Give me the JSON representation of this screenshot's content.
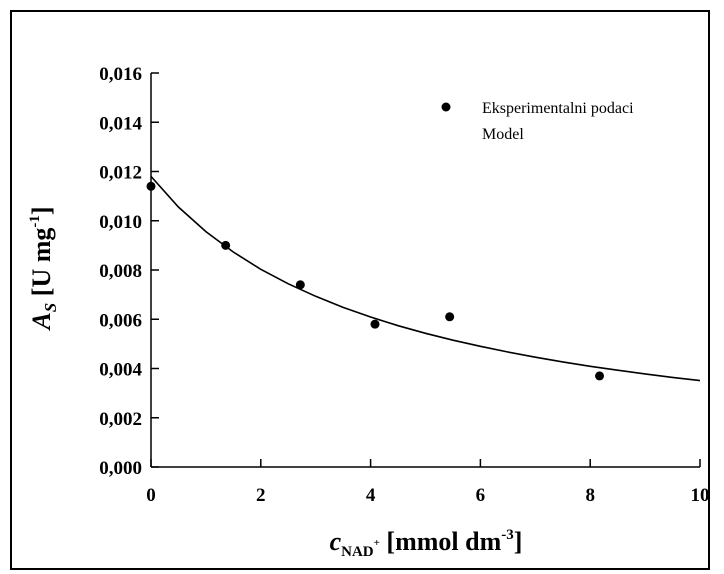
{
  "chart_data": {
    "type": "scatter",
    "xlim": [
      0,
      10
    ],
    "ylim": [
      0,
      0.016
    ],
    "x_ticks": [
      0,
      2,
      4,
      6,
      8,
      10
    ],
    "x_tick_labels": [
      "0",
      "2",
      "4",
      "6",
      "8",
      "10"
    ],
    "y_ticks": [
      0,
      0.002,
      0.004,
      0.006,
      0.008,
      0.01,
      0.012,
      0.014,
      0.016
    ],
    "y_tick_labels": [
      "0,000",
      "0,002",
      "0,004",
      "0,006",
      "0,008",
      "0,010",
      "0,012",
      "0,014",
      "0,016"
    ],
    "xlabel": {
      "main": "c",
      "sub": "NAD",
      "sub_sup": "+",
      "rest": " [mmol dm",
      "sup": "-3",
      "close": "]"
    },
    "ylabel": {
      "main": "A",
      "sub": "S",
      "rest": " [U mg",
      "sup": "-1",
      "close": "]"
    },
    "legend_position": "top-right",
    "grid": false,
    "series": [
      {
        "name": "Eksperimentalni podaci",
        "kind": "scatter",
        "color": "#000000",
        "x": [
          0,
          1.36,
          2.72,
          4.08,
          5.44,
          8.17
        ],
        "y": [
          0.0114,
          0.009,
          0.0074,
          0.0058,
          0.0061,
          0.0037
        ]
      },
      {
        "name": "Model",
        "kind": "line",
        "color": "#000000",
        "x": [
          0,
          0.5,
          1,
          1.5,
          2,
          2.5,
          3,
          3.5,
          4,
          4.5,
          5,
          5.5,
          6,
          6.5,
          7,
          7.5,
          8,
          8.5,
          9,
          9.5,
          10
        ],
        "y": [
          0.0118,
          0.01056,
          0.00956,
          0.00873,
          0.00803,
          0.00744,
          0.00693,
          0.00648,
          0.00609,
          0.00574,
          0.00543,
          0.00515,
          0.0049,
          0.00467,
          0.00446,
          0.00427,
          0.00409,
          0.00393,
          0.00378,
          0.00364,
          0.00351
        ]
      }
    ]
  }
}
